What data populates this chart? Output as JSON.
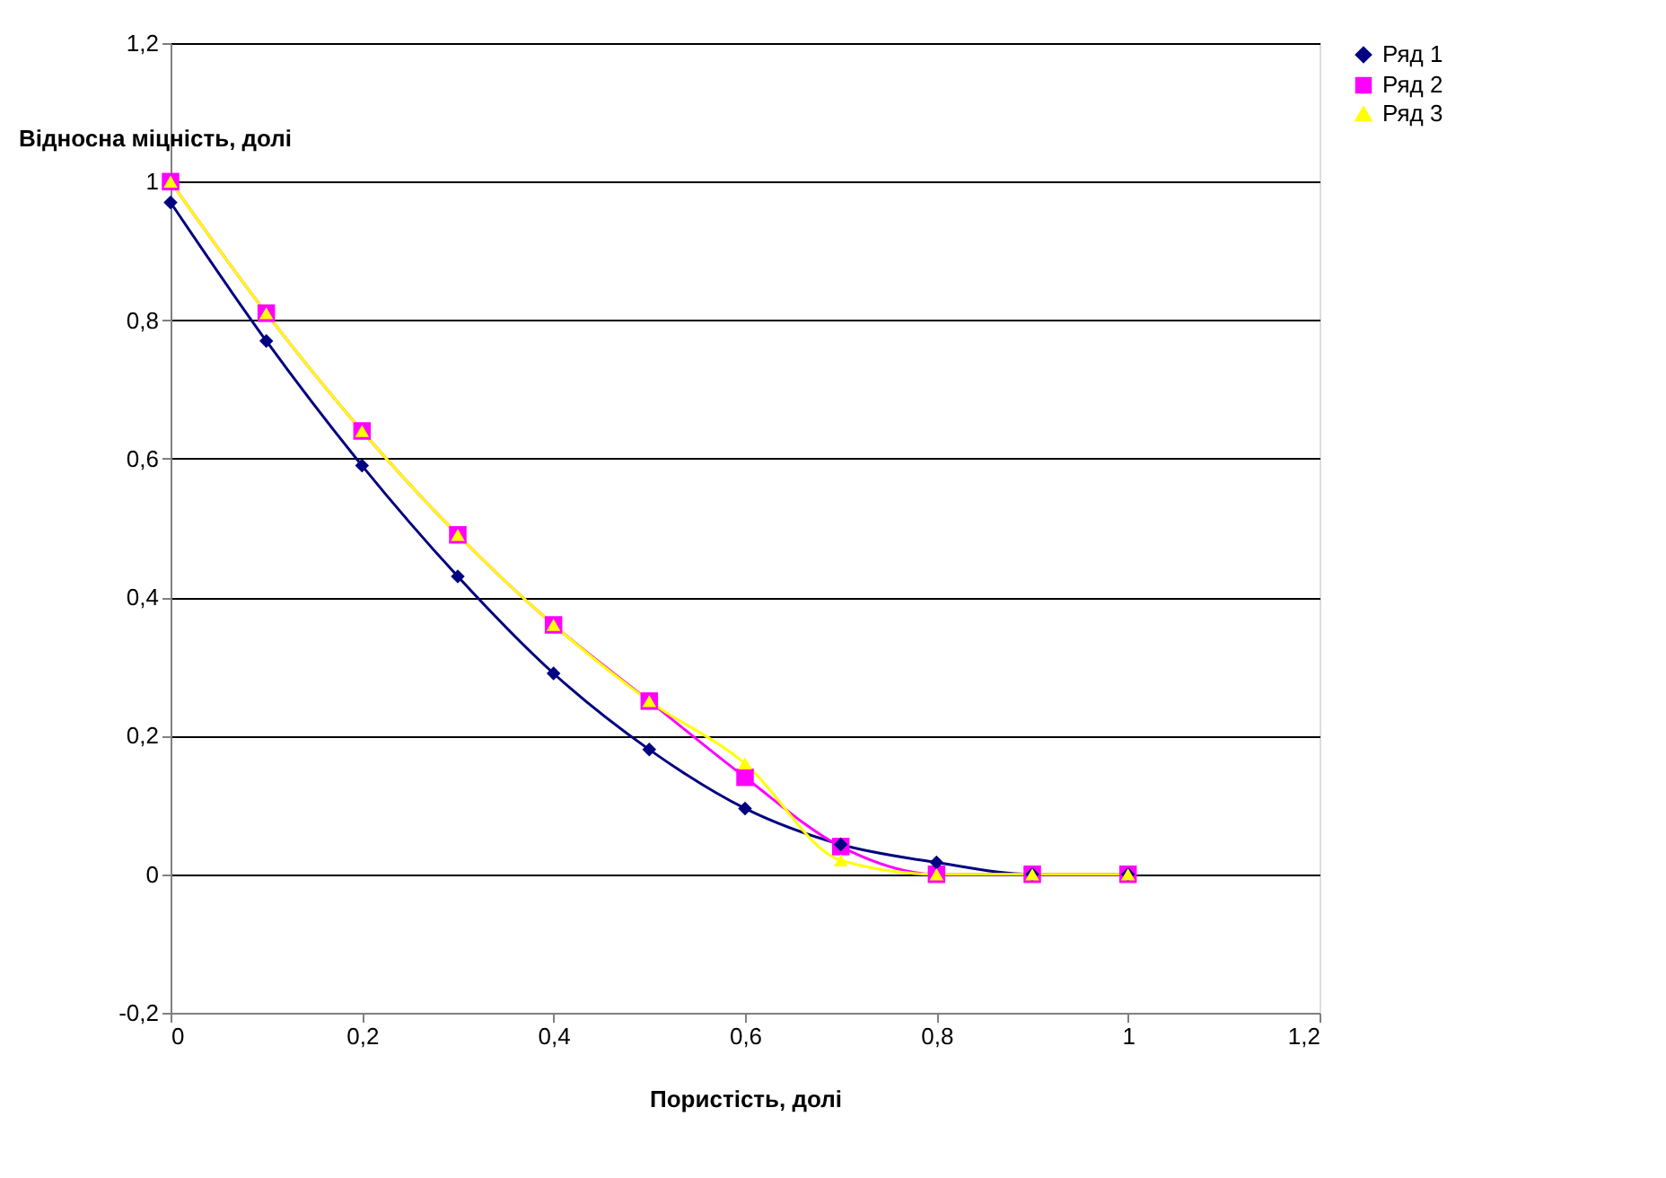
{
  "chart_data": {
    "type": "line",
    "xlabel": "Пористість, долі",
    "ylabel": "Відносна міцність, долі",
    "x": [
      0,
      0.1,
      0.2,
      0.3,
      0.4,
      0.5,
      0.6,
      0.7,
      0.8,
      0.9,
      1
    ],
    "series": [
      {
        "name": "Ряд 1",
        "color": "#000080",
        "marker": "diamond",
        "values": [
          0.97,
          0.77,
          0.59,
          0.43,
          0.29,
          0.18,
          0.095,
          0.043,
          0.017,
          0,
          0
        ]
      },
      {
        "name": "Ряд 2",
        "color": "#ff00ff",
        "marker": "square",
        "values": [
          1,
          0.81,
          0.64,
          0.49,
          0.36,
          0.25,
          0.14,
          0.04,
          0,
          0,
          0
        ]
      },
      {
        "name": "Ряд 3",
        "color": "#ffff00",
        "marker": "triangle",
        "values": [
          1,
          0.81,
          0.64,
          0.49,
          0.36,
          0.25,
          0.16,
          0.02,
          0,
          0,
          0
        ]
      }
    ],
    "xlim": [
      0,
      1.2
    ],
    "ylim": [
      -0.2,
      1.2
    ],
    "xticks": [
      0,
      {
        "value": 0.2,
        "label": "0,2"
      },
      {
        "value": 0.4,
        "label": "0,4"
      },
      {
        "value": 0.6,
        "label": "0,6"
      },
      {
        "value": 0.8,
        "label": "0,8"
      },
      1,
      {
        "value": 1.2,
        "label": "1,2"
      }
    ],
    "yticks": [
      {
        "value": -0.2,
        "label": "-0,2"
      },
      0,
      {
        "value": 0.2,
        "label": "0,2"
      },
      {
        "value": 0.4,
        "label": "0,4"
      },
      {
        "value": 0.6,
        "label": "0,6"
      },
      {
        "value": 0.8,
        "label": "0,8"
      },
      1,
      {
        "value": 1.2,
        "label": "1,2"
      }
    ],
    "grid": "y",
    "legend": "right",
    "line_style": "solid"
  }
}
